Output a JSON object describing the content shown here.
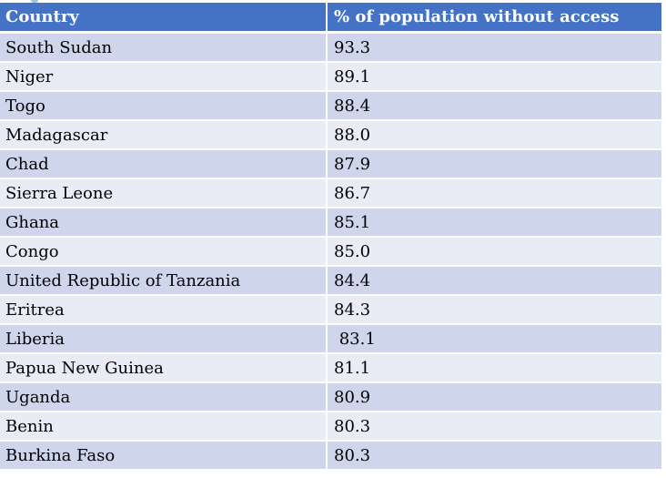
{
  "table": {
    "headers": [
      "Country",
      "% of population without access"
    ],
    "rows": [
      [
        "South Sudan",
        "93.3"
      ],
      [
        "Niger",
        "89.1"
      ],
      [
        "Togo",
        "88.4"
      ],
      [
        "Madagascar",
        "88.0"
      ],
      [
        "Chad",
        "87.9"
      ],
      [
        "Sierra Leone",
        "86.7"
      ],
      [
        "Ghana",
        "85.1"
      ],
      [
        "Congo",
        "85.0"
      ],
      [
        "United Republic of Tanzania",
        "84.4"
      ],
      [
        "Eritrea",
        "84.3"
      ],
      [
        "Liberia",
        " 83.1"
      ],
      [
        "Papua New Guinea",
        "81.1"
      ],
      [
        "Uganda",
        "80.9"
      ],
      [
        "Benin",
        "80.3"
      ],
      [
        "Burkina Faso",
        "80.3"
      ]
    ]
  },
  "colors": {
    "header_bg": "#4472c4",
    "row_odd_bg": "#cfd5ea",
    "row_even_bg": "#e9ebf5"
  }
}
